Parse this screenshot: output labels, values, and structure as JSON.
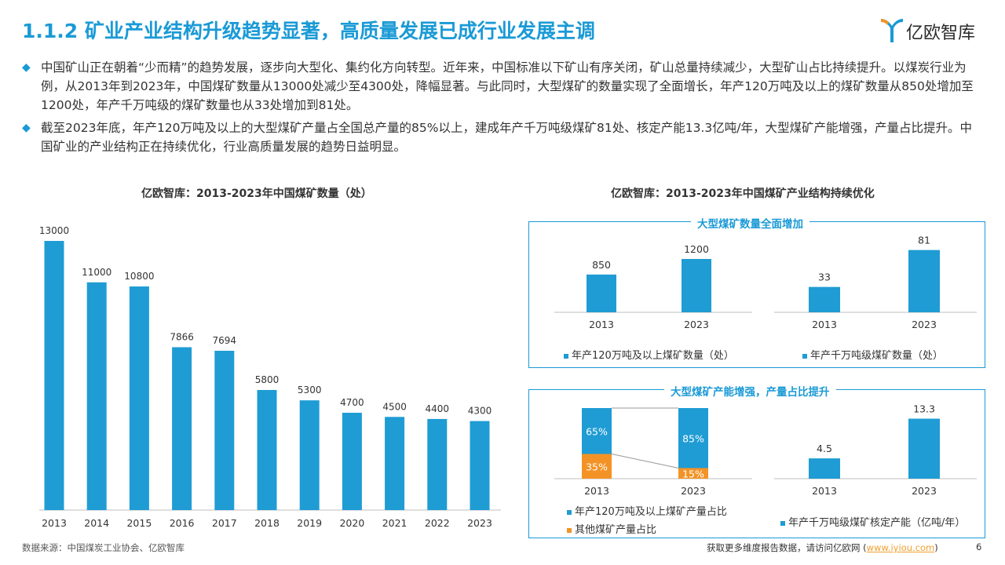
{
  "header": {
    "title": "1.1.2 矿业产业结构升级趋势显著，高质量发展已成行业发展主调",
    "logo_text": "亿欧智库",
    "logo_icon": "yiou-logo-icon"
  },
  "paragraphs": {
    "bullet": "◆",
    "p1": "中国矿山正在朝着“少而精”的趋势发展，逐步向大型化、集约化方向转型。近年来，中国标准以下矿山有序关闭，矿山总量持续减少，大型矿山占比持续提升。以煤炭行业为例，从2013年到2023年，中国煤矿数量从13000处减少至4300处，降幅显著。与此同时，大型煤矿的数量实现了全面增长，年产120万吨及以上的煤矿数量从850处增加至1200处，年产千万吨级的煤矿数量也从33处增加到81处。",
    "p2": "截至2023年底，年产120万吨及以上的大型煤矿产量占全国总产量的85%以上，建成年产千万吨级煤矿81处、核定产能13.3亿吨/年，大型煤矿产能增强，产量占比提升。中国矿业的产业结构正在持续优化，行业高质量发展的趋势日益明显。"
  },
  "left_chart_title": "亿欧智库：2013-2023年中国煤矿数量（处）",
  "right_title": "亿欧智库：2013-2023年中国煤矿产业结构持续优化",
  "box1_title": "大型煤矿数量全面增加",
  "box2_title": "大型煤矿产能增强，产量占比提升",
  "legends": {
    "c1": "年产120万吨及以上煤矿数量（处）",
    "c2": "年产千万吨级煤矿数量（处）",
    "c3a": "年产120万吨及以上煤矿产量占比",
    "c3b": "其他煤矿产量占比",
    "c4": "年产千万吨级煤矿核定产能（亿吨/年）"
  },
  "colors": {
    "accent": "#1a9ad6",
    "bar": "#1f9cd4",
    "orange": "#f39325",
    "text": "#333333"
  },
  "chart_data": [
    {
      "type": "bar",
      "title": "亿欧智库：2013-2023年中国煤矿数量（处）",
      "categories": [
        "2013",
        "2014",
        "2015",
        "2016",
        "2017",
        "2018",
        "2019",
        "2020",
        "2021",
        "2022",
        "2023"
      ],
      "values": [
        13000,
        11000,
        10800,
        7866,
        7694,
        5800,
        5300,
        4700,
        4500,
        4400,
        4300
      ],
      "ylim": [
        0,
        13000
      ]
    },
    {
      "type": "bar",
      "categories": [
        "2013",
        "2023"
      ],
      "series": [
        {
          "name": "年产120万吨及以上煤矿数量（处）",
          "values": [
            850,
            1200
          ]
        }
      ],
      "ylim": [
        0,
        1500
      ]
    },
    {
      "type": "bar",
      "categories": [
        "2013",
        "2023"
      ],
      "series": [
        {
          "name": "年产千万吨级煤矿数量（处）",
          "values": [
            33,
            81
          ]
        }
      ],
      "ylim": [
        0,
        100
      ]
    },
    {
      "type": "bar",
      "stacked": true,
      "categories": [
        "2013",
        "2023"
      ],
      "series": [
        {
          "name": "年产120万吨及以上煤矿产量占比",
          "values": [
            65,
            85
          ],
          "labels": [
            "65%",
            "85%"
          ]
        },
        {
          "name": "其他煤矿产量占比",
          "values": [
            35,
            15
          ],
          "labels": [
            "35%",
            "15%"
          ]
        }
      ],
      "ylim": [
        0,
        100
      ]
    },
    {
      "type": "bar",
      "categories": [
        "2013",
        "2023"
      ],
      "series": [
        {
          "name": "年产千万吨级煤矿核定产能（亿吨/年）",
          "values": [
            4.5,
            13.3
          ]
        }
      ],
      "ylim": [
        0,
        16
      ]
    }
  ],
  "footer": {
    "source": "数据来源：中国煤炭工业协会、亿欧智库",
    "more_text": "获取更多维度报告数据，请访问亿欧网 (",
    "link": "www.iyiou.com",
    "close": ")",
    "page": "6"
  }
}
